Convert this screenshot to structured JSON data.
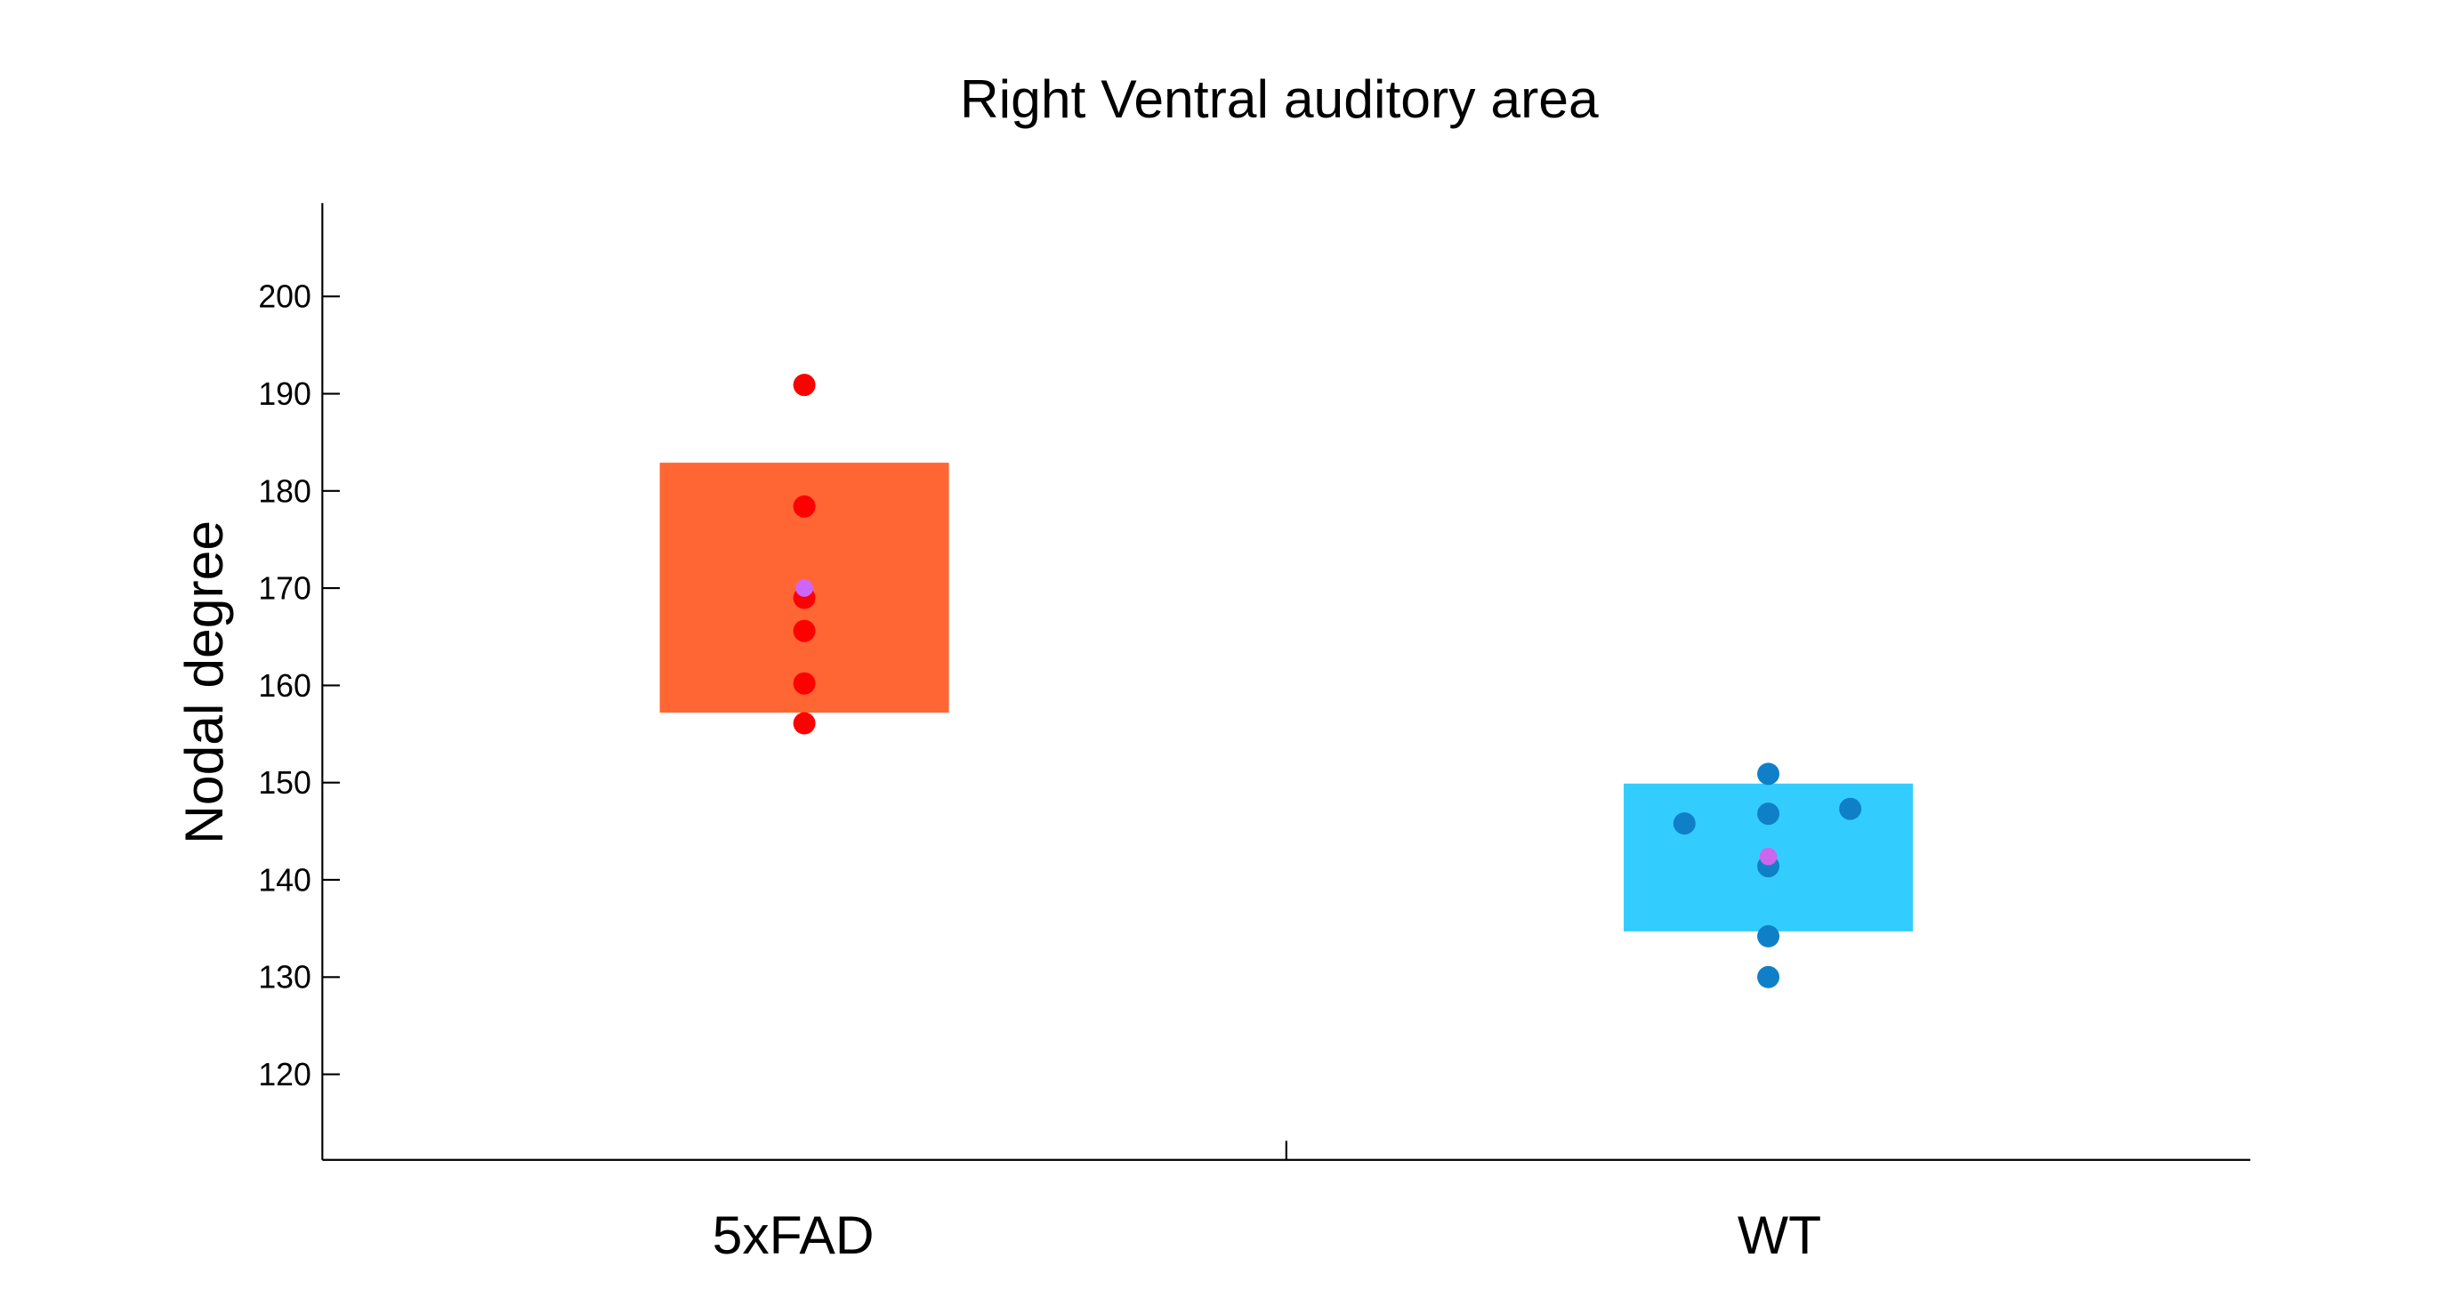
{
  "chart_data": {
    "type": "box-scatter",
    "title": "Right Ventral auditory area",
    "xlabel": "",
    "ylabel": "Nodal degree",
    "categories": [
      "5xFAD",
      "WT"
    ],
    "ylim": [
      111.2,
      209.6
    ],
    "yticks": [
      120,
      130,
      140,
      150,
      160,
      170,
      180,
      190,
      200
    ],
    "xlim": [
      0.5,
      2.5
    ],
    "xticks_minor": [
      1.5
    ],
    "grid": false,
    "series": [
      {
        "name": "5xFAD",
        "box_color": "#FF6633",
        "point_color": "#FF0000",
        "mean_color": "#CC66FF",
        "box": [
          157.2,
          182.9
        ],
        "mean": 170.0,
        "points": [
          {
            "x": 1,
            "y": 190.9
          },
          {
            "x": 1,
            "y": 178.4
          },
          {
            "x": 1,
            "y": 169.0
          },
          {
            "x": 1,
            "y": 165.6
          },
          {
            "x": 1,
            "y": 160.2
          },
          {
            "x": 1,
            "y": 156.1
          }
        ]
      },
      {
        "name": "WT",
        "box_color": "#33CCFF",
        "point_color": "#0F80C8",
        "mean_color": "#CC66EE",
        "box": [
          134.7,
          149.9
        ],
        "mean": 142.4,
        "points": [
          {
            "x": 2,
            "y": 150.9
          },
          {
            "x": 2,
            "y": 146.8
          },
          {
            "x": 1.913,
            "y": 145.8
          },
          {
            "x": 2.085,
            "y": 147.3
          },
          {
            "x": 2,
            "y": 141.4
          },
          {
            "x": 2,
            "y": 134.2
          },
          {
            "x": 2,
            "y": 130.0
          }
        ]
      }
    ]
  }
}
